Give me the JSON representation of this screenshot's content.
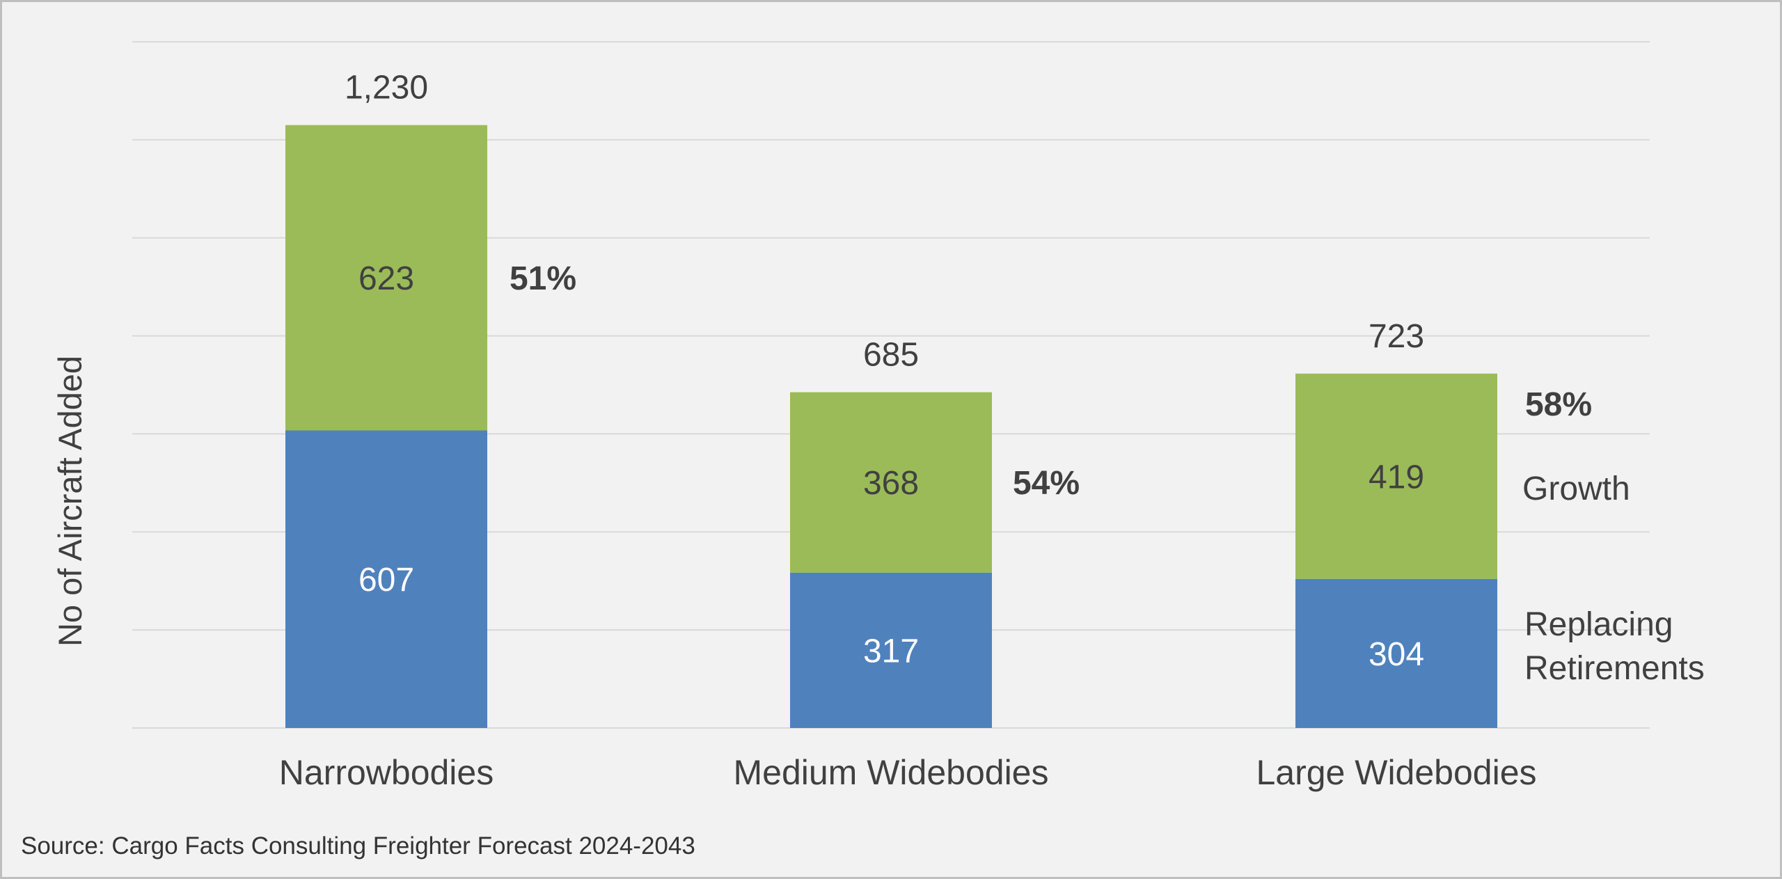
{
  "chart_data": {
    "type": "bar",
    "stacked": true,
    "categories": [
      "Narrowbodies",
      "Medium Widebodies",
      "Large Widebodies"
    ],
    "series": [
      {
        "name": "Replacing Retirements",
        "values": [
          607,
          317,
          304
        ],
        "color": "#4f81bd"
      },
      {
        "name": "Growth",
        "values": [
          623,
          368,
          419
        ],
        "color": "#9bbb59"
      }
    ],
    "totals": [
      "1,230",
      "685",
      "723"
    ],
    "growth_share_labels": [
      "51%",
      "54%",
      "58%"
    ],
    "ylabel": "No of Aircraft Added",
    "ylim": [
      0,
      1400
    ],
    "grid": true,
    "legend": "inline-right",
    "legend_labels": {
      "growth": "Growth",
      "retirements_line1": "Replacing",
      "retirements_line2": "Retirements"
    }
  },
  "source": "Source: Cargo Facts Consulting Freighter Forecast 2024-2043"
}
